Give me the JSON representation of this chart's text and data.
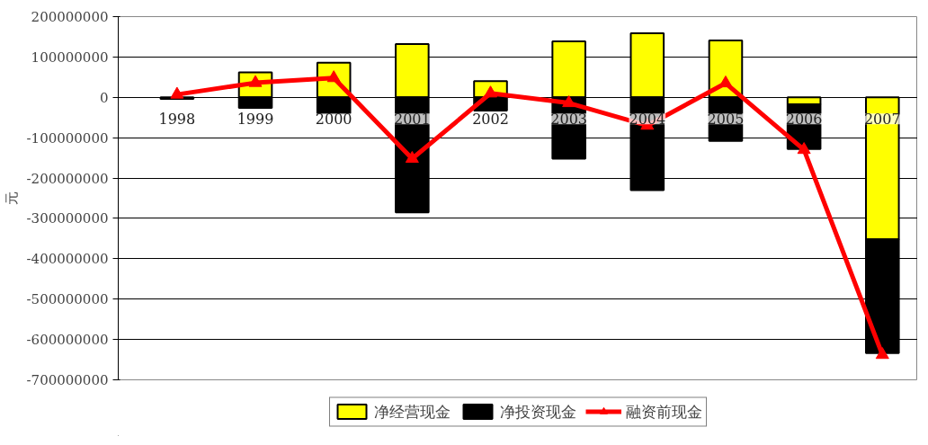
{
  "chart_data": {
    "type": "bar",
    "ylabel": "元",
    "categories": [
      "1998",
      "1999",
      "2000",
      "2001",
      "2002",
      "2003",
      "2004",
      "2005",
      "2006",
      "2007"
    ],
    "stacked": true,
    "series": [
      {
        "name": "净经营现金",
        "type": "bar",
        "color": "#ffff00",
        "values": [
          null,
          62000000,
          86000000,
          132000000,
          40000000,
          139000000,
          159000000,
          141000000,
          -17000000,
          -352000000
        ]
      },
      {
        "name": "净投资现金",
        "type": "bar",
        "color": "#000000",
        "values": [
          -4000000,
          -26000000,
          -40000000,
          -285000000,
          -33000000,
          -152000000,
          -230000000,
          -108000000,
          -111000000,
          -282000000
        ]
      },
      {
        "name": "融资前现金",
        "type": "line",
        "color": "#ff0000",
        "marker": "triangle",
        "values": [
          7000000,
          36000000,
          48000000,
          -152000000,
          10000000,
          -14000000,
          -70000000,
          35000000,
          -130000000,
          -638000000
        ]
      }
    ],
    "ylim": [
      -700000000,
      200000000
    ],
    "yticks": [
      -700000000,
      -600000000,
      -500000000,
      -400000000,
      -300000000,
      -200000000,
      -100000000,
      0,
      100000000,
      200000000
    ],
    "grid": "y",
    "legend": "bottom"
  }
}
